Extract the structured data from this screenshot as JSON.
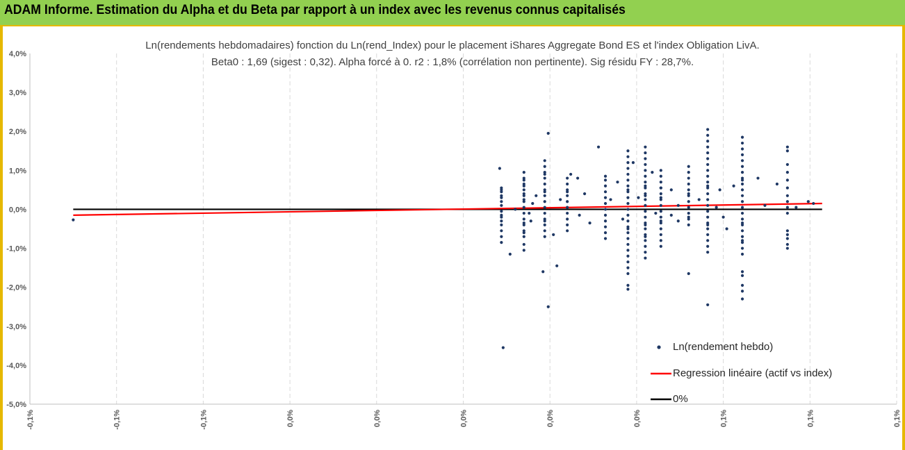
{
  "header": {
    "title": "ADAM Informe. Estimation du Alpha et du Beta par rapport à un index avec les revenus connus capitalisés"
  },
  "chart_data": {
    "type": "scatter",
    "title_line1": "Ln(rendements hebdomadaires) fonction du Ln(rend_Index) pour le placement iShares Aggregate Bond ES et l'index Obligation LivA.",
    "title_line2": "Beta0 : 1,69 (sigest : 0,32). Alpha forcé à 0. r2 : 1,8% (corrélation non pertinente). Sig résidu FY : 28,7%.",
    "xlabel": "",
    "ylabel": "",
    "xlim": [
      -0.125,
      0.125
    ],
    "ylim": [
      -5.0,
      4.0
    ],
    "x_tick_values": [
      -0.125,
      -0.1,
      -0.075,
      -0.05,
      -0.025,
      0,
      0.025,
      0.05,
      0.075,
      0.1,
      0.125
    ],
    "x_tick_labels": [
      "-0,1%",
      "-0,1%",
      "-0,1%",
      "0,0%",
      "0,0%",
      "0,0%",
      "0,0%",
      "0,0%",
      "0,1%",
      "0,1%",
      "0,1%"
    ],
    "y_tick_values": [
      4,
      3,
      2,
      1,
      0,
      -1,
      -2,
      -3,
      -4,
      -5
    ],
    "y_tick_labels": [
      "4,0%",
      "3,0%",
      "2,0%",
      "1,0%",
      "0,0%",
      "-1,0%",
      "-2,0%",
      "-3,0%",
      "-4,0%",
      "-5,0%"
    ],
    "grid_vertical": true,
    "grid_horizontal": false,
    "legend_position": "bottom-right",
    "series": [
      {
        "name": "Ln(rendement hebdo)",
        "kind": "scatter",
        "color": "#1f3864",
        "columns": [
          {
            "x": 0.011,
            "y": [
              0.55,
              0.45,
              0.35,
              0.2,
              0.1,
              -0.05,
              -0.15,
              -0.3,
              -0.4,
              -0.55,
              -0.7,
              -0.85,
              0.3,
              -0.2,
              0.5
            ]
          },
          {
            "x": 0.0175,
            "y": [
              0.95,
              0.8,
              0.65,
              0.5,
              0.35,
              0.2,
              0.05,
              -0.1,
              -0.25,
              -0.4,
              -0.55,
              -0.7,
              -0.9,
              -1.05,
              0.75,
              0.6,
              0.4,
              0.25,
              -0.35,
              -0.6
            ]
          },
          {
            "x": 0.0235,
            "y": [
              1.25,
              1.1,
              0.95,
              0.8,
              0.65,
              0.5,
              0.35,
              0.2,
              0.05,
              -0.1,
              -0.25,
              -0.4,
              -0.55,
              -0.7,
              0.9,
              0.45,
              -0.3
            ]
          },
          {
            "x": 0.03,
            "y": [
              0.8,
              0.65,
              0.5,
              0.35,
              0.2,
              0.05,
              -0.1,
              -0.25,
              -0.4,
              -0.55,
              0.45
            ]
          },
          {
            "x": 0.041,
            "y": [
              0.75,
              0.6,
              0.45,
              0.3,
              0.15,
              0,
              -0.15,
              -0.3,
              -0.45,
              -0.6,
              -0.75,
              0.85
            ]
          },
          {
            "x": 0.0475,
            "y": [
              1.5,
              1.35,
              1.2,
              1.05,
              0.9,
              0.75,
              0.6,
              0.45,
              0.3,
              0.15,
              0,
              -0.15,
              -0.3,
              -0.45,
              -0.6,
              -0.75,
              -0.9,
              -1.05,
              -1.2,
              -1.35,
              -1.5,
              -1.65,
              -1.95,
              -2.05,
              0.5,
              -0.5
            ]
          },
          {
            "x": 0.0525,
            "y": [
              1.6,
              1.45,
              1.3,
              1.15,
              1,
              0.85,
              0.7,
              0.55,
              0.4,
              0.25,
              0.1,
              -0.05,
              -0.2,
              -0.35,
              -0.5,
              -0.65,
              -0.8,
              -0.95,
              -1.1,
              -1.25,
              0.6,
              0.35,
              -0.4,
              -0.7
            ]
          },
          {
            "x": 0.057,
            "y": [
              1.0,
              0.85,
              0.7,
              0.55,
              0.4,
              0.25,
              0.1,
              -0.05,
              -0.2,
              -0.35,
              -0.5,
              -0.65,
              -0.8,
              -0.95,
              0.55,
              0.3,
              -0.3
            ]
          },
          {
            "x": 0.065,
            "y": [
              1.1,
              0.95,
              0.8,
              0.65,
              0.5,
              0.35,
              0.2,
              0.05,
              -0.1,
              -0.25,
              -0.4,
              -1.65,
              0.4,
              -0.2
            ]
          },
          {
            "x": 0.0705,
            "y": [
              2.05,
              1.9,
              1.75,
              1.6,
              1.45,
              1.3,
              1.15,
              1.0,
              0.85,
              0.7,
              0.55,
              0.4,
              0.25,
              0.1,
              -0.05,
              -0.2,
              -0.35,
              -0.5,
              -0.65,
              -0.8,
              -0.95,
              -1.1,
              -2.45,
              0.6,
              -0.4
            ]
          },
          {
            "x": 0.0805,
            "y": [
              1.85,
              1.7,
              1.55,
              1.4,
              1.25,
              1.1,
              0.95,
              0.8,
              0.65,
              0.5,
              0.35,
              0.2,
              0.05,
              -0.1,
              -0.25,
              -0.4,
              -0.55,
              -0.7,
              -0.85,
              -1.0,
              -1.15,
              -1.6,
              -1.7,
              -1.95,
              -2.1,
              -2.3,
              0.75,
              -0.35,
              -0.8
            ]
          },
          {
            "x": 0.0935,
            "y": [
              1.6,
              1.5,
              1.15,
              0.95,
              0.75,
              0.55,
              0.35,
              0.2,
              0.05,
              -0.1,
              -0.55,
              -0.65,
              -0.75,
              -0.9,
              -1.0
            ]
          }
        ],
        "points": [
          [
            -0.1125,
            -0.27
          ],
          [
            0.0105,
            1.05
          ],
          [
            0.0135,
            -1.15
          ],
          [
            0.0115,
            -3.55
          ],
          [
            0.0245,
            1.95
          ],
          [
            0.0245,
            -2.5
          ],
          [
            0.023,
            -1.6
          ],
          [
            0.027,
            -1.45
          ],
          [
            0.02,
            0.15
          ],
          [
            0.0195,
            -0.3
          ],
          [
            0.028,
            0.25
          ],
          [
            0.026,
            -0.65
          ],
          [
            0.031,
            0.9
          ],
          [
            0.033,
            0.8
          ],
          [
            0.035,
            0.4
          ],
          [
            0.0365,
            -0.35
          ],
          [
            0.039,
            1.6
          ],
          [
            0.0445,
            0.7
          ],
          [
            0.046,
            -0.25
          ],
          [
            0.049,
            1.2
          ],
          [
            0.0505,
            0.3
          ],
          [
            0.0545,
            0.95
          ],
          [
            0.06,
            0.5
          ],
          [
            0.062,
            -0.3
          ],
          [
            0.068,
            0.25
          ],
          [
            0.074,
            0.5
          ],
          [
            0.076,
            -0.5
          ],
          [
            0.078,
            0.6
          ],
          [
            0.085,
            0.8
          ],
          [
            0.087,
            0.1
          ],
          [
            0.0905,
            0.65
          ],
          [
            0.0995,
            0.2
          ],
          [
            0.101,
            0.15
          ],
          [
            0.096,
            0.05
          ],
          [
            0.015,
            0.0
          ],
          [
            0.019,
            -0.1
          ],
          [
            0.021,
            0.35
          ],
          [
            0.0335,
            -0.15
          ],
          [
            0.0425,
            0.25
          ],
          [
            0.0555,
            -0.1
          ],
          [
            0.06,
            -0.15
          ],
          [
            0.062,
            0.1
          ],
          [
            0.073,
            0.05
          ],
          [
            0.075,
            -0.2
          ]
        ]
      },
      {
        "name": "Regression linéaire (actif vs index)",
        "kind": "line",
        "color": "#ff0000",
        "x": [
          -0.1125,
          0.1035
        ],
        "y": [
          -0.15,
          0.15
        ]
      },
      {
        "name": "0%",
        "kind": "line",
        "color": "#000000",
        "x": [
          -0.1125,
          0.1035
        ],
        "y": [
          0,
          0
        ]
      }
    ]
  }
}
